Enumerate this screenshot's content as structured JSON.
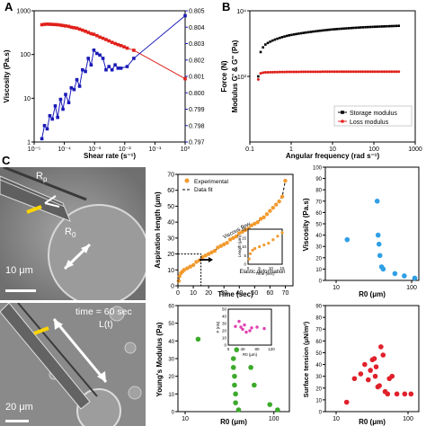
{
  "panels": {
    "A": "A",
    "B": "B",
    "C": "C"
  },
  "colors": {
    "red": "#e0201b",
    "blue": "#1a1ab8",
    "orange": "#f29a2e",
    "ltblue": "#2f9fe6",
    "green": "#3caa2a",
    "pink": "#e040b0",
    "crimson": "#e0202a"
  },
  "micrographs": {
    "top": {
      "rp": "R",
      "rp_sub": "p",
      "r0": "R",
      "r0_sub": "0",
      "scale": "10 μm"
    },
    "bottom": {
      "time": "time = 60 sec",
      "lt": "L(t)",
      "scale": "20 μm"
    }
  },
  "chart_data": [
    {
      "id": "A",
      "type": "line",
      "xlabel": "Shear rate (s⁻¹)",
      "xscale": "log",
      "xlim": [
        1e-05,
        1
      ],
      "xticks": [
        "10⁻⁵",
        "10⁻⁴",
        "10⁻³",
        "10⁻²",
        "10⁻¹",
        "10⁰"
      ],
      "ylabel": "Viscosity (Pa.s)",
      "yscale": "log",
      "ylim": [
        1,
        1000
      ],
      "yticks": [
        "1000",
        "100",
        "10",
        "1"
      ],
      "y2label": "Force (N)",
      "y2lim": [
        0.797,
        0.805
      ],
      "y2ticks": [
        "0.805",
        "0.804",
        "0.803",
        "0.802",
        "0.801",
        "0.800",
        "0.799",
        "0.798",
        "0.797"
      ],
      "series": [
        {
          "axis": "left",
          "color": "red",
          "x": [
            1.8e-05,
            2.2e-05,
            2.7e-05,
            3.3e-05,
            4e-05,
            5e-05,
            6e-05,
            7.5e-05,
            9e-05,
            0.00011,
            0.00014,
            0.00017,
            0.00021,
            0.00026,
            0.00032,
            0.0004,
            0.0005,
            0.00062,
            0.00077,
            0.00095,
            0.0012,
            0.0015,
            0.0019,
            0.0024,
            0.003,
            0.0038,
            0.0048,
            0.006,
            0.0075,
            0.0095,
            0.012,
            0.02,
            1
          ],
          "y": [
            480,
            490,
            495,
            492,
            488,
            485,
            480,
            470,
            460,
            450,
            440,
            420,
            410,
            400,
            380,
            360,
            340,
            320,
            300,
            290,
            270,
            250,
            235,
            220,
            205,
            190,
            178,
            168,
            160,
            150,
            140,
            125,
            28
          ]
        },
        {
          "axis": "right",
          "color": "blue",
          "x": [
            1.8e-05,
            2.2e-05,
            2.7e-05,
            3.3e-05,
            4e-05,
            5e-05,
            6e-05,
            7.5e-05,
            9e-05,
            0.00011,
            0.00014,
            0.00017,
            0.00021,
            0.00026,
            0.00032,
            0.0004,
            0.0005,
            0.00062,
            0.00077,
            0.00095,
            0.0012,
            0.0015,
            0.0019,
            0.0024,
            0.003,
            0.0038,
            0.0048,
            0.006,
            0.0075,
            0.012,
            0.02,
            1
          ],
          "y": [
            0.7972,
            0.798,
            0.7978,
            0.7986,
            0.7984,
            0.7992,
            0.7985,
            0.7996,
            0.799,
            0.7999,
            0.7994,
            0.8003,
            0.8002,
            0.8008,
            0.8004,
            0.8014,
            0.8013,
            0.8021,
            0.8017,
            0.8026,
            0.8024,
            0.8023,
            0.8021,
            0.8014,
            0.8016,
            0.8014,
            0.8017,
            0.8015,
            0.8015,
            0.8016,
            0.8021,
            0.8047
          ]
        }
      ]
    },
    {
      "id": "B",
      "type": "scatter",
      "xlabel": "Angular frequency (rad s⁻¹)",
      "xscale": "log",
      "xlim": [
        0.1,
        1000
      ],
      "xticks": [
        "0.1",
        "1",
        "10",
        "100",
        "1000"
      ],
      "ylabel": "Modulus G' & G'' (Pa)",
      "yscale": "log",
      "ylim": [
        100,
        10000
      ],
      "yticks": [
        "10⁴",
        "10³"
      ],
      "legend": "bottom-right",
      "series": [
        {
          "name": "Storage modulus",
          "color": "#000000",
          "x_range": [
            0.16,
            400
          ],
          "y": [
            1000,
            2100,
            3000,
            3600,
            4200,
            4700,
            5200,
            5600,
            5900
          ]
        },
        {
          "name": "Loss modulus",
          "color": "red",
          "x_range": [
            0.16,
            400
          ],
          "y": [
            900,
            1100,
            1150,
            1160,
            1170,
            1175,
            1180,
            1180,
            1180
          ]
        }
      ]
    },
    {
      "id": "C-aspiration",
      "type": "scatter",
      "xlabel": "Time (sec)",
      "ylabel": "Aspiration length (μm)",
      "xlim": [
        0,
        75
      ],
      "ylim": [
        0,
        70
      ],
      "xticks": [
        "0",
        "10",
        "20",
        "30",
        "40",
        "50",
        "60",
        "70"
      ],
      "yticks": [
        "0",
        "10",
        "20",
        "30",
        "40",
        "50",
        "60",
        "70"
      ],
      "legend": [
        "Experimental",
        "Data fit"
      ],
      "annotations": [
        "Viscous flow",
        "Elastic deformation"
      ],
      "series": [
        {
          "name": "Experimental",
          "color": "orange",
          "x": [
            0.5,
            1,
            2,
            3,
            4,
            6,
            8,
            10,
            12,
            14,
            16,
            18,
            20,
            22,
            24,
            26,
            28,
            30,
            32,
            34,
            36,
            38,
            40,
            42,
            44,
            46,
            48,
            50,
            52,
            54,
            56,
            58,
            60,
            62,
            64,
            66,
            68,
            70
          ],
          "y": [
            3,
            6,
            8,
            9,
            10,
            11,
            12,
            13,
            15,
            16,
            18,
            19,
            20,
            21,
            22,
            24,
            25,
            26,
            27,
            29,
            30,
            31,
            33,
            34,
            35,
            36,
            38,
            39,
            40,
            42,
            43,
            45,
            47,
            49,
            51,
            53,
            56,
            66
          ]
        }
      ],
      "inset": {
        "xlabel": "Time (sec)",
        "ylabel": "Length (μm)",
        "xticks": [
          "0",
          "5",
          "10",
          "15"
        ],
        "yticks": [
          "0",
          "5",
          "10",
          "15",
          "20"
        ]
      }
    },
    {
      "id": "C-viscosity",
      "type": "scatter",
      "xlabel": "R0 (μm)",
      "ylabel": "Viscosity (Pa.s)",
      "xscale": "log",
      "xlim": [
        10,
        100
      ],
      "xticks": [
        "10",
        "100"
      ],
      "ylim": [
        0,
        100
      ],
      "yticks": [
        "0",
        "10",
        "20",
        "30",
        "40",
        "50",
        "60",
        "70",
        "80",
        "90",
        "100"
      ],
      "series": [
        {
          "color": "ltblue",
          "x": [
            14,
            35,
            36,
            37,
            38,
            40,
            42,
            60,
            80,
            110
          ],
          "y": [
            36,
            70,
            40,
            32,
            22,
            12,
            10,
            6,
            4,
            2
          ]
        }
      ]
    },
    {
      "id": "C-youngs",
      "type": "scatter",
      "xlabel": "R0 (μm)",
      "ylabel": "Young's Modulus (Pa)",
      "xscale": "log",
      "xlim": [
        10,
        130
      ],
      "xticks": [
        "10",
        "100"
      ],
      "ylim": [
        0,
        60
      ],
      "yticks": [
        "0",
        "10",
        "20",
        "30",
        "40",
        "50",
        "60"
      ],
      "series": [
        {
          "color": "green",
          "x": [
            14,
            35,
            35,
            36,
            36,
            37,
            37,
            38,
            40,
            55,
            60,
            90,
            110
          ],
          "y": [
            41,
            30,
            25,
            20,
            15,
            10,
            5,
            35,
            1,
            25,
            15,
            4,
            1
          ]
        }
      ],
      "inset": {
        "xlabel": "R0 (μm)",
        "ylabel": "F (nN)",
        "xticks": [
          "0",
          "40",
          "80",
          "120"
        ],
        "yticks": [
          "0",
          "10",
          "20",
          "30",
          "40",
          "50"
        ],
        "color": "pink",
        "x": [
          20,
          30,
          35,
          40,
          45,
          50,
          60,
          65,
          80,
          100
        ],
        "y": [
          26,
          33,
          25,
          22,
          28,
          18,
          20,
          24,
          25,
          23
        ]
      }
    },
    {
      "id": "C-tension",
      "type": "scatter",
      "xlabel": "R0 (μm)",
      "ylabel": "Surface tension (μN/m²)",
      "xscale": "log",
      "xlim": [
        10,
        100
      ],
      "xticks": [
        "10",
        "100"
      ],
      "ylim": [
        0,
        90
      ],
      "yticks": [
        "0",
        "10",
        "20",
        "30",
        "40",
        "50",
        "60",
        "70",
        "80",
        "90"
      ],
      "series": [
        {
          "color": "crimson",
          "x": [
            14,
            18,
            22,
            25,
            28,
            30,
            32,
            34,
            35,
            36,
            38,
            40,
            42,
            45,
            48,
            52,
            55,
            60,
            70,
            90,
            110
          ],
          "y": [
            8,
            28,
            32,
            40,
            27,
            35,
            44,
            45,
            30,
            38,
            21,
            22,
            55,
            48,
            17,
            15,
            28,
            30,
            15,
            15,
            15
          ]
        }
      ]
    }
  ]
}
